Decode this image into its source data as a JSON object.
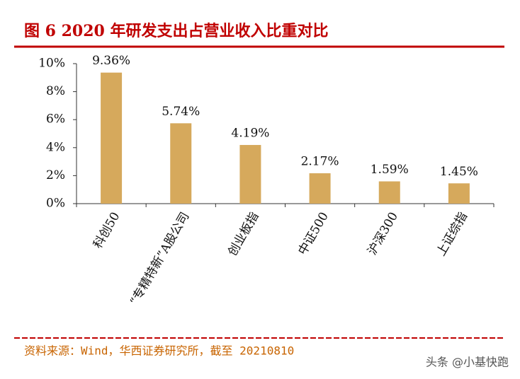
{
  "chart_data": {
    "type": "bar",
    "title": "图 6   2020 年研发支出占营业收入比重对比",
    "categories": [
      "科创50",
      "“专精特新”A股公司",
      "创业板指",
      "中证500",
      "沪深300",
      "上证综指"
    ],
    "values": [
      9.36,
      5.74,
      4.19,
      2.17,
      1.59,
      1.45
    ],
    "value_labels": [
      "9.36%",
      "5.74%",
      "4.19%",
      "2.17%",
      "1.59%",
      "1.45%"
    ],
    "color": "#d6a95c",
    "ylim": [
      0,
      10
    ],
    "yticks": [
      {
        "value": 0,
        "label": "0%"
      },
      {
        "value": 2,
        "label": "2%"
      },
      {
        "value": 4,
        "label": "4%"
      },
      {
        "value": 6,
        "label": "6%"
      },
      {
        "value": 8,
        "label": "8%"
      },
      {
        "value": 10,
        "label": "10%"
      }
    ],
    "grid": false,
    "source": "资料来源：Wind，华西证券研究所，截至 20210810",
    "watermark": "头条 @小基快跑"
  }
}
